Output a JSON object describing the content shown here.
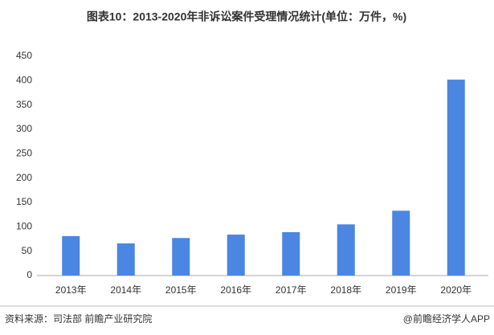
{
  "chart_data": {
    "type": "bar",
    "title": "图表10：2013-2020年非诉讼案件受理情况统计(单位：万件，%)",
    "categories": [
      "2013年",
      "2014年",
      "2015年",
      "2016年",
      "2017年",
      "2018年",
      "2019年",
      "2020年"
    ],
    "values": [
      81,
      66,
      77,
      84,
      89,
      105,
      133,
      402
    ],
    "color": "#4a86e2",
    "ylim": [
      0,
      450
    ],
    "yticks": [
      0,
      50,
      100,
      150,
      200,
      250,
      300,
      350,
      400,
      450
    ],
    "grid": false,
    "source": "资料来源：司法部 前瞻产业研究院",
    "credit": "@前瞻经济学人APP"
  }
}
